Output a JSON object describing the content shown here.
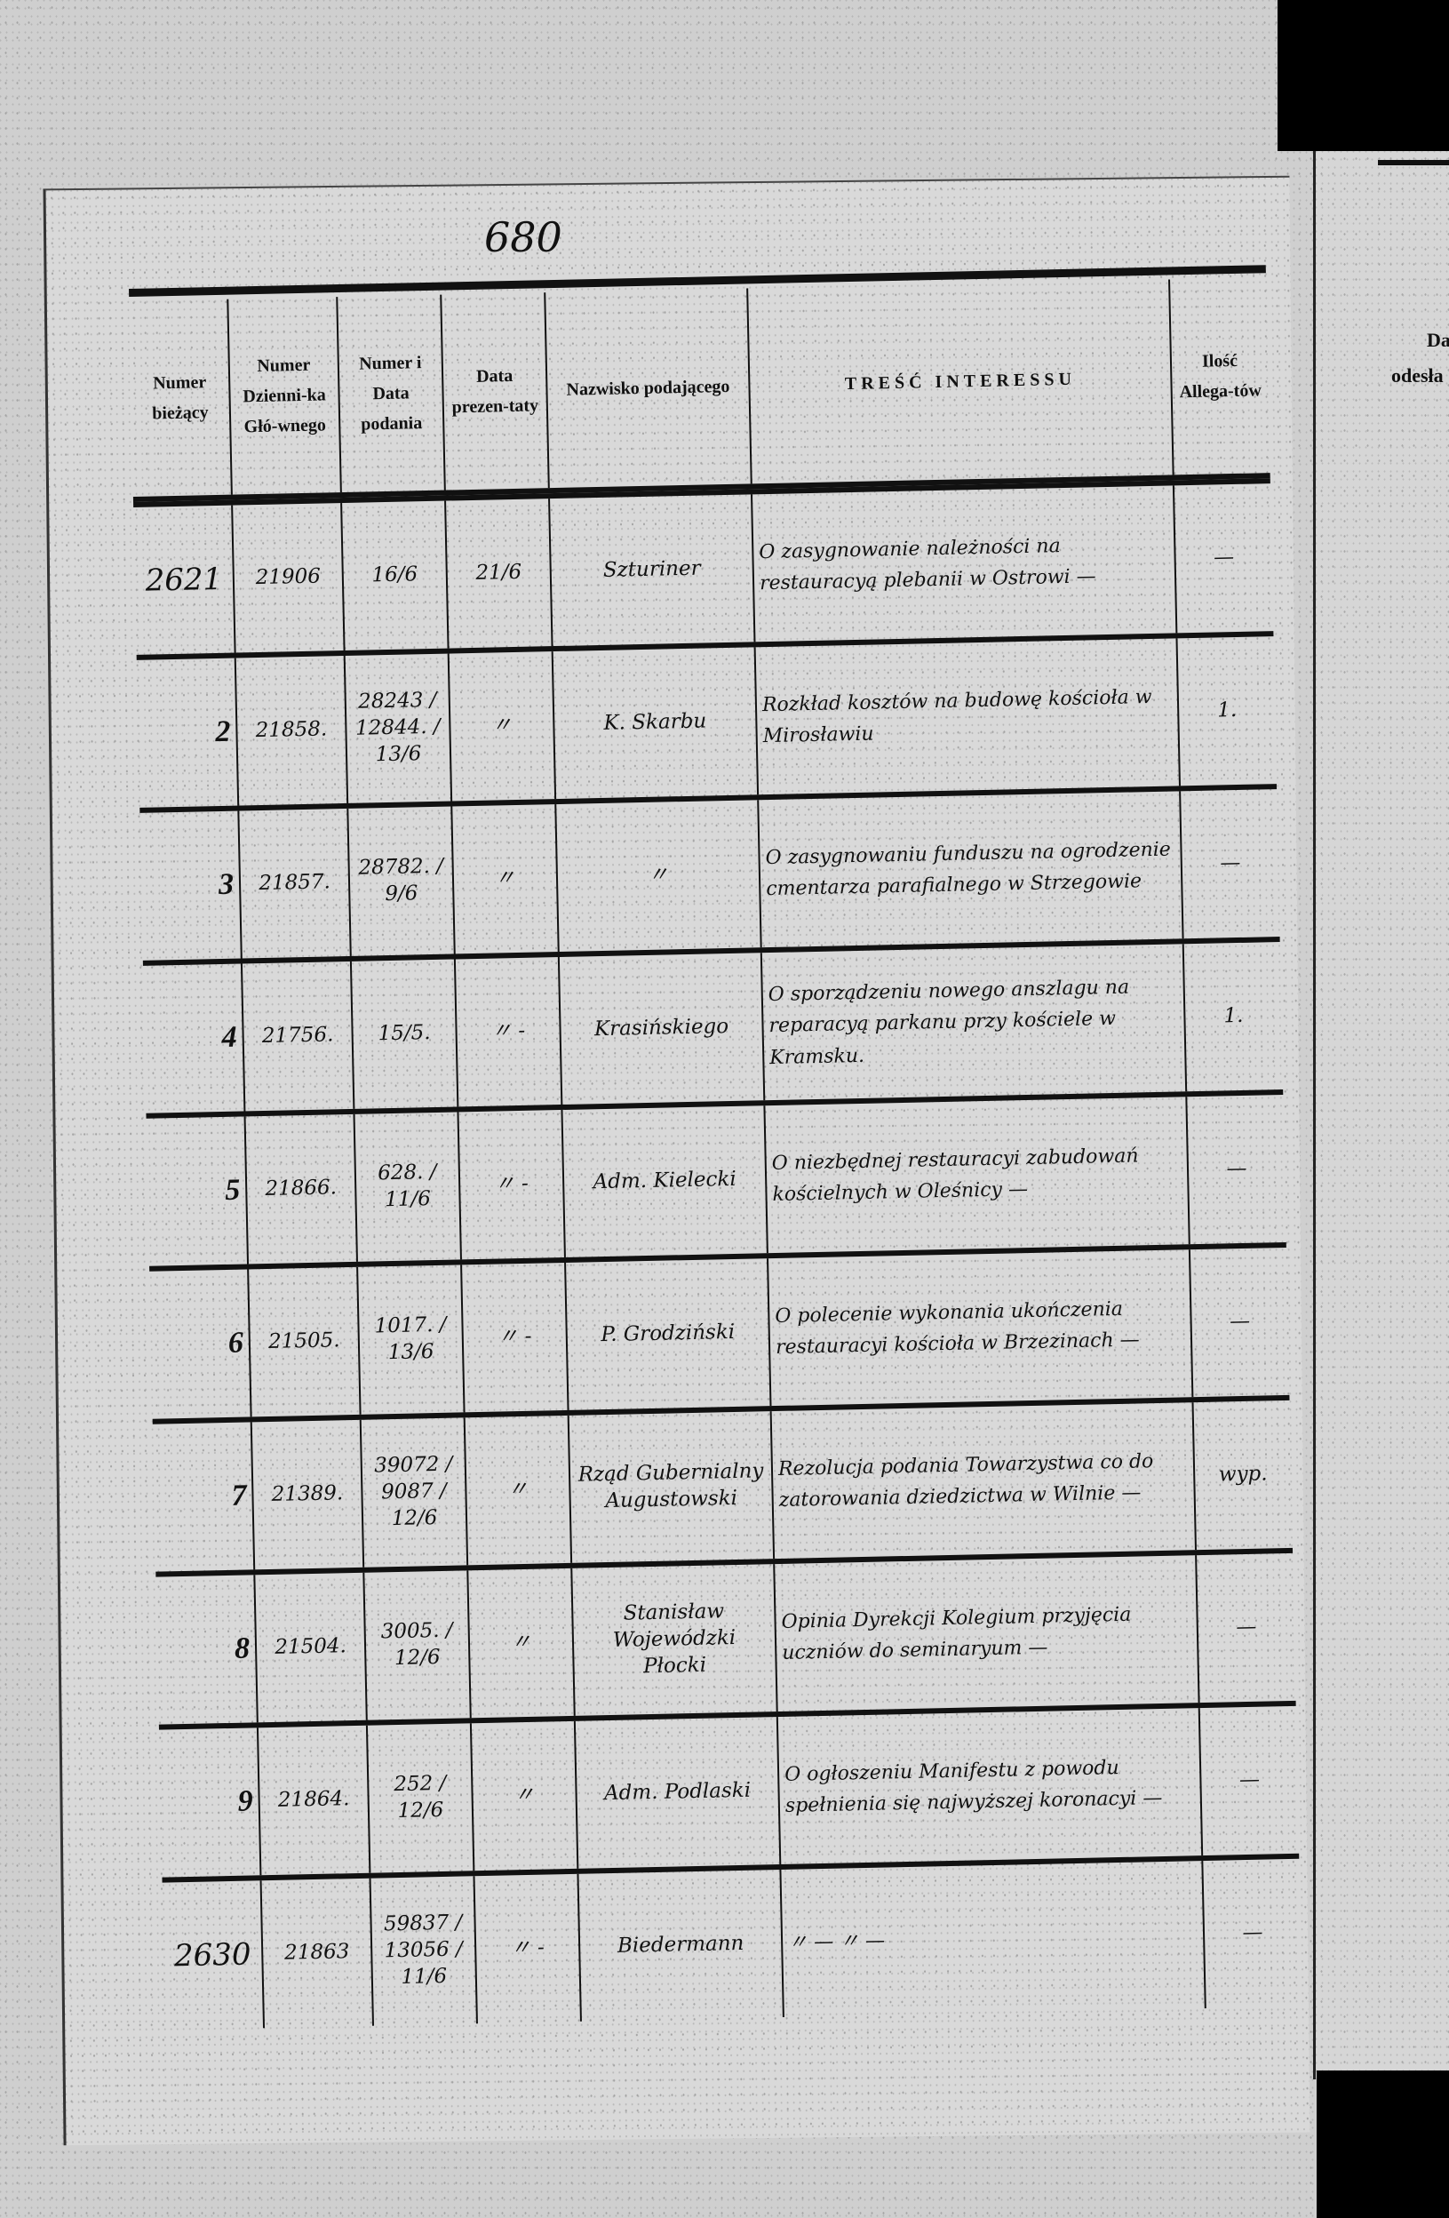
{
  "page_number": "680",
  "headers": {
    "numer_biezacy": "Numer bieżący",
    "numer_dziennika": "Numer Dzienni-ka Głó-wnego",
    "numer_data_podania": "Numer i Data podania",
    "data_prezentaty": "Data prezen-taty",
    "nazwisko": "Nazwisko podającego",
    "tresc": "TREŚĆ INTERESSU",
    "allegatow": "Ilość Allega-tów"
  },
  "right_page": {
    "header_fragment_1": "Da",
    "header_fragment_2": "odesła"
  },
  "rows": [
    {
      "numer": "2621",
      "dziennik": "21906",
      "numer_data": "16/6",
      "prezentata": "21/6",
      "nazwisko": "Szturiner",
      "tresc": "O zasygnowanie należności na restauracyą plebanii w Ostrowi —",
      "allegaty": "—"
    },
    {
      "numer": "2",
      "dziennik": "21858.",
      "numer_data": "28243 / 12844. / 13/6",
      "prezentata": "〃",
      "nazwisko": "K. Skarbu",
      "tresc": "Rozkład kosztów na budowę kościoła w Mirosławiu",
      "allegaty": "1."
    },
    {
      "numer": "3",
      "dziennik": "21857.",
      "numer_data": "28782. / 9/6",
      "prezentata": "〃",
      "nazwisko": "〃",
      "tresc": "O zasygnowaniu funduszu na ogrodzenie cmentarza parafialnego w Strzegowie",
      "allegaty": "—"
    },
    {
      "numer": "4",
      "dziennik": "21756.",
      "numer_data": "15/5.",
      "prezentata": "〃 -",
      "nazwisko": "Krasińskiego",
      "tresc": "O sporządzeniu nowego anszlagu na reparacyą parkanu przy kościele w Kramsku.",
      "allegaty": "1."
    },
    {
      "numer": "5",
      "dziennik": "21866.",
      "numer_data": "628. / 11/6",
      "prezentata": "〃 -",
      "nazwisko": "Adm. Kielecki",
      "tresc": "O niezbędnej restauracyi zabudowań kościelnych w Oleśnicy —",
      "allegaty": "—"
    },
    {
      "numer": "6",
      "dziennik": "21505.",
      "numer_data": "1017. / 13/6",
      "prezentata": "〃 -",
      "nazwisko": "P. Grodziński",
      "tresc": "O polecenie wykonania ukończenia restauracyi kościoła w Brzezinach —",
      "allegaty": "—"
    },
    {
      "numer": "7",
      "dziennik": "21389.",
      "numer_data": "39072 / 9087 / 12/6",
      "prezentata": "〃",
      "nazwisko": "Rząd Gubernialny Augustowski",
      "tresc": "Rezolucja podania Towarzystwa co do zatorowania dziedzictwa w Wilnie —",
      "allegaty": "wyp."
    },
    {
      "numer": "8",
      "dziennik": "21504.",
      "numer_data": "3005. / 12/6",
      "prezentata": "〃",
      "nazwisko": "Stanisław Wojewódzki Płocki",
      "tresc": "Opinia Dyrekcji Kolegium przyjęcia uczniów do seminaryum —",
      "allegaty": "—"
    },
    {
      "numer": "9",
      "dziennik": "21864.",
      "numer_data": "252 / 12/6",
      "prezentata": "〃",
      "nazwisko": "Adm. Podlaski",
      "tresc": "O ogłoszeniu Manifestu z powodu spełnienia się najwyższej koronacyi —",
      "allegaty": "—"
    },
    {
      "numer": "2630",
      "dziennik": "21863",
      "numer_data": "59837 / 13056 / 11/6",
      "prezentata": "〃 -",
      "nazwisko": "Biedermann",
      "tresc": "〃 —     〃 —",
      "allegaty": "—"
    }
  ]
}
